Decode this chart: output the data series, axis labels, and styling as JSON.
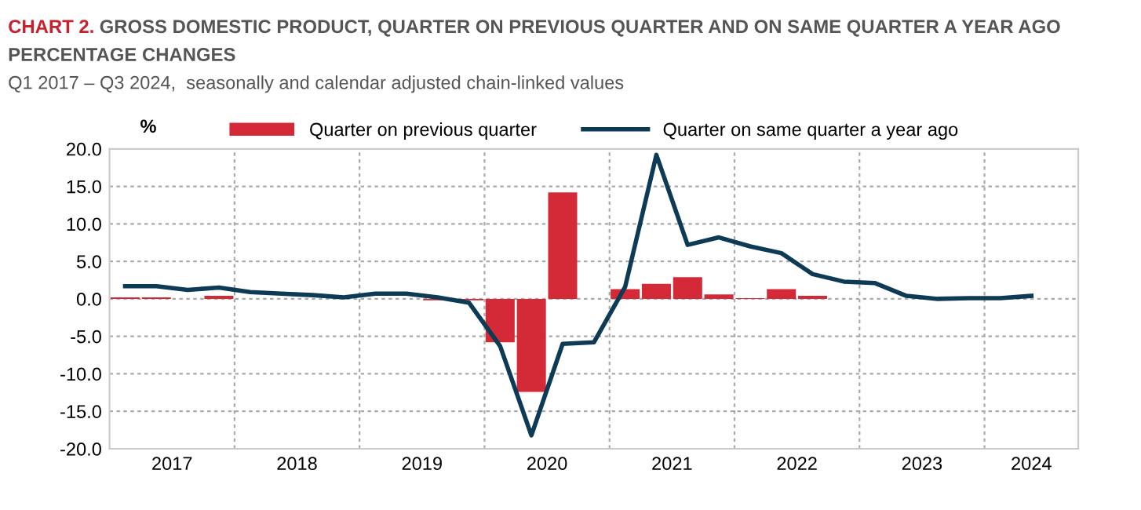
{
  "chart_data": {
    "type": "bar",
    "title": "CHART 2. GROSS DOMESTIC PRODUCT, QUARTER ON PREVIOUS QUARTER AND ON SAME QUARTER A YEAR AGO\nPERCENTAGE CHANGES",
    "subtitle": "Q1 2017 – Q3 2024,  seasonally and calendar adjusted chain-linked values",
    "ylabel": "%",
    "x": [
      2017.125,
      2017.375,
      2017.625,
      2017.875,
      2018.125,
      2018.375,
      2018.625,
      2018.875,
      2019.125,
      2019.375,
      2019.625,
      2019.875,
      2020.125,
      2020.375,
      2020.625,
      2020.875,
      2021.125,
      2021.375,
      2021.625,
      2021.875,
      2022.125,
      2022.375,
      2022.625,
      2022.875,
      2023.125,
      2023.375,
      2023.625,
      2023.875,
      2024.125,
      2024.375
    ],
    "series": [
      {
        "name": "Quarter on previous quarter",
        "color": "#d42a37",
        "values": [
          0.2,
          0.2,
          null,
          0.4,
          null,
          null,
          null,
          null,
          null,
          null,
          -0.2,
          -0.2,
          -5.8,
          -12.4,
          14.2,
          null,
          1.3,
          2.0,
          2.9,
          0.6,
          0.1,
          1.3,
          0.4,
          null,
          null,
          null,
          null,
          null,
          null,
          null
        ]
      },
      {
        "name": "Quarter on same quarter a year ago",
        "type": "line",
        "color": "#0d3b55",
        "values": [
          1.7,
          1.7,
          1.2,
          1.5,
          0.9,
          0.7,
          0.5,
          0.2,
          0.7,
          0.7,
          0.2,
          -0.5,
          -6.3,
          -18.2,
          -6.0,
          -5.8,
          1.6,
          19.2,
          7.2,
          8.2,
          7.0,
          6.1,
          3.3,
          2.3,
          2.1,
          0.4,
          0.0,
          0.1,
          0.1,
          0.4
        ]
      }
    ],
    "xlim": [
      2017,
      2024.75
    ],
    "xticks": [
      {
        "value": 2017.5,
        "label": "2017"
      },
      {
        "value": 2018,
        "label": null
      },
      {
        "value": 2018.5,
        "label": "2018"
      },
      {
        "value": 2019,
        "label": null
      },
      {
        "value": 2019.5,
        "label": "2019"
      },
      {
        "value": 2020,
        "label": null
      },
      {
        "value": 2020.5,
        "label": "2020"
      },
      {
        "value": 2021,
        "label": null
      },
      {
        "value": 2021.5,
        "label": "2021"
      },
      {
        "value": 2022,
        "label": null
      },
      {
        "value": 2022.5,
        "label": "2022"
      },
      {
        "value": 2023,
        "label": null
      },
      {
        "value": 2023.5,
        "label": "2023"
      },
      {
        "value": 2024,
        "label": null
      },
      {
        "value": 2024.375,
        "label": "2024"
      }
    ],
    "ylim": [
      -20,
      20
    ],
    "yticks": [
      {
        "value": -20,
        "label": "-20.0"
      },
      {
        "value": -15,
        "label": "-15.0"
      },
      {
        "value": -10,
        "label": "-10.0"
      },
      {
        "value": -5,
        "label": "-5.0"
      },
      {
        "value": 0,
        "label": "0.0"
      },
      {
        "value": 5,
        "label": "5.0"
      },
      {
        "value": 10,
        "label": "10.0"
      },
      {
        "value": 15,
        "label": "15.0"
      },
      {
        "value": 20,
        "label": "20.0"
      }
    ],
    "grid": true,
    "legend": "top",
    "marker": "none",
    "line_style": "solid"
  }
}
